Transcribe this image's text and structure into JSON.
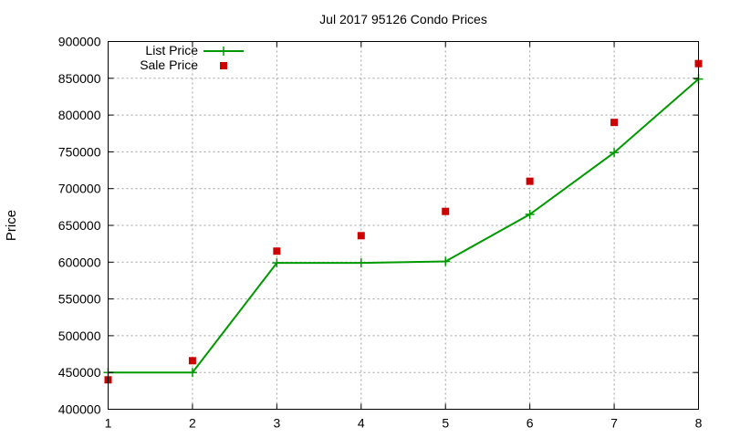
{
  "chart_data": {
    "type": "line",
    "title": "Jul 2017 95126 Condo Prices",
    "xlabel": "",
    "ylabel": "Price",
    "x": [
      1,
      2,
      3,
      4,
      5,
      6,
      7,
      8
    ],
    "xlim": [
      1,
      8
    ],
    "ylim": [
      400000,
      900000
    ],
    "xticks": [
      "1",
      "2",
      "3",
      "4",
      "5",
      "6",
      "7",
      "8"
    ],
    "yticks": [
      "400000",
      "450000",
      "500000",
      "550000",
      "600000",
      "650000",
      "700000",
      "750000",
      "800000",
      "850000",
      "900000"
    ],
    "grid": true,
    "legend_position": "top-left",
    "series": [
      {
        "name": "List Price",
        "style": "line-with-plus-markers",
        "color": "#009900",
        "values": [
          450000,
          450000,
          599000,
          599000,
          601000,
          665000,
          749000,
          849000
        ]
      },
      {
        "name": "Sale Price",
        "style": "square-markers",
        "color": "#cc0000",
        "values": [
          440000,
          466000,
          615000,
          636000,
          669000,
          710000,
          790000,
          870000
        ]
      }
    ]
  }
}
